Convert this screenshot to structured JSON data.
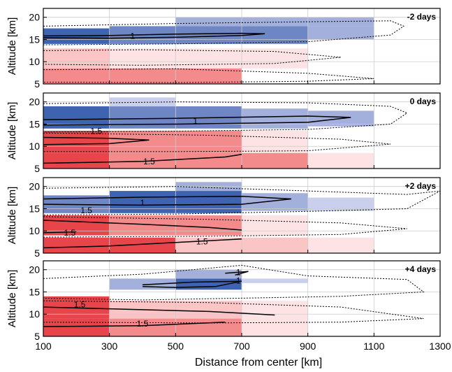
{
  "chart_data": {
    "type": "heatmap",
    "xlabel": "Distance from center [km]",
    "ylabel": "Altitude [km]",
    "xlim": [
      100,
      1300
    ],
    "ylim": [
      5,
      22
    ],
    "x_ticks": [
      "100",
      "300",
      "500",
      "700",
      "900",
      "1100",
      "1300"
    ],
    "y_ticks": [
      "5",
      "10",
      "15",
      "20"
    ],
    "grid": true,
    "colors": {
      "red_strong": "#e8454a",
      "red_mid": "#f38a8c",
      "red_light": "#fbc4c5",
      "red_pale": "#fde3e3",
      "blue_strong": "#3e63b0",
      "blue_mid": "#6f86c4",
      "blue_light": "#a4b0dc",
      "blue_pale": "#c9cfec"
    },
    "panels": [
      {
        "title": "-2 days",
        "contour_labels": [
          "1"
        ],
        "cells": [
          {
            "x0": 100,
            "x1": 700,
            "y0": 5,
            "y1": 8.5,
            "level": "red_mid"
          },
          {
            "x0": 100,
            "x1": 300,
            "y0": 8.5,
            "y1": 13,
            "level": "red_light"
          },
          {
            "x0": 300,
            "x1": 900,
            "y0": 8.5,
            "y1": 13,
            "level": "red_pale"
          },
          {
            "x0": 100,
            "x1": 300,
            "y0": 14,
            "y1": 17.5,
            "level": "blue_strong"
          },
          {
            "x0": 300,
            "x1": 900,
            "y0": 14,
            "y1": 18,
            "level": "blue_mid"
          },
          {
            "x0": 900,
            "x1": 1100,
            "y0": 15,
            "y1": 18,
            "level": "blue_light"
          },
          {
            "x0": 500,
            "x1": 1100,
            "y0": 18,
            "y1": 20,
            "level": "blue_light"
          }
        ]
      },
      {
        "title": "0 days",
        "contour_labels": [
          "1.5",
          "1.5",
          "1"
        ],
        "cells": [
          {
            "x0": 100,
            "x1": 300,
            "y0": 5,
            "y1": 8.5,
            "level": "red_strong"
          },
          {
            "x0": 300,
            "x1": 900,
            "y0": 5,
            "y1": 8.5,
            "level": "red_mid"
          },
          {
            "x0": 900,
            "x1": 1100,
            "y0": 5,
            "y1": 8.5,
            "level": "red_pale"
          },
          {
            "x0": 100,
            "x1": 300,
            "y0": 8.5,
            "y1": 13.5,
            "level": "red_strong"
          },
          {
            "x0": 300,
            "x1": 700,
            "y0": 8.5,
            "y1": 13.5,
            "level": "red_mid"
          },
          {
            "x0": 700,
            "x1": 900,
            "y0": 8.5,
            "y1": 13.5,
            "level": "red_pale"
          },
          {
            "x0": 100,
            "x1": 300,
            "y0": 14,
            "y1": 19,
            "level": "blue_strong"
          },
          {
            "x0": 300,
            "x1": 700,
            "y0": 14,
            "y1": 19,
            "level": "blue_mid"
          },
          {
            "x0": 700,
            "x1": 900,
            "y0": 14,
            "y1": 18.5,
            "level": "blue_light"
          },
          {
            "x0": 900,
            "x1": 1100,
            "y0": 14.5,
            "y1": 18,
            "level": "blue_light"
          },
          {
            "x0": 300,
            "x1": 500,
            "y0": 19,
            "y1": 21,
            "level": "blue_pale"
          }
        ]
      },
      {
        "title": "+2 days",
        "contour_labels": [
          "1.5",
          "1.5",
          "1.5",
          "1"
        ],
        "cells": [
          {
            "x0": 100,
            "x1": 500,
            "y0": 5,
            "y1": 8.5,
            "level": "red_strong"
          },
          {
            "x0": 500,
            "x1": 900,
            "y0": 5,
            "y1": 8.5,
            "level": "red_light"
          },
          {
            "x0": 900,
            "x1": 1100,
            "y0": 5,
            "y1": 8.5,
            "level": "red_pale"
          },
          {
            "x0": 100,
            "x1": 300,
            "y0": 9,
            "y1": 13.5,
            "level": "red_strong"
          },
          {
            "x0": 300,
            "x1": 700,
            "y0": 9,
            "y1": 13.5,
            "level": "red_mid"
          },
          {
            "x0": 700,
            "x1": 900,
            "y0": 9,
            "y1": 13.5,
            "level": "red_pale"
          },
          {
            "x0": 100,
            "x1": 300,
            "y0": 14,
            "y1": 18,
            "level": "blue_mid"
          },
          {
            "x0": 300,
            "x1": 700,
            "y0": 14,
            "y1": 19,
            "level": "blue_strong"
          },
          {
            "x0": 700,
            "x1": 900,
            "y0": 14.5,
            "y1": 18.5,
            "level": "blue_light"
          },
          {
            "x0": 900,
            "x1": 1100,
            "y0": 14.5,
            "y1": 17.5,
            "level": "blue_pale"
          },
          {
            "x0": 500,
            "x1": 700,
            "y0": 19,
            "y1": 21,
            "level": "blue_light"
          }
        ]
      },
      {
        "title": "+4 days",
        "contour_labels": [
          "1.5",
          "1.5",
          "1",
          "1"
        ],
        "cells": [
          {
            "x0": 100,
            "x1": 300,
            "y0": 5,
            "y1": 9,
            "level": "red_strong"
          },
          {
            "x0": 300,
            "x1": 700,
            "y0": 5,
            "y1": 9,
            "level": "red_mid"
          },
          {
            "x0": 700,
            "x1": 900,
            "y0": 5,
            "y1": 9,
            "level": "red_pale"
          },
          {
            "x0": 100,
            "x1": 300,
            "y0": 9,
            "y1": 14,
            "level": "red_strong"
          },
          {
            "x0": 300,
            "x1": 700,
            "y0": 9,
            "y1": 13,
            "level": "red_light"
          },
          {
            "x0": 700,
            "x1": 900,
            "y0": 9,
            "y1": 13,
            "level": "red_pale"
          },
          {
            "x0": 300,
            "x1": 500,
            "y0": 15.5,
            "y1": 18,
            "level": "blue_light"
          },
          {
            "x0": 500,
            "x1": 700,
            "y0": 15.5,
            "y1": 18,
            "level": "blue_strong"
          },
          {
            "x0": 500,
            "x1": 700,
            "y0": 18,
            "y1": 20,
            "level": "blue_light"
          },
          {
            "x0": 700,
            "x1": 900,
            "y0": 17,
            "y1": 18,
            "level": "blue_pale"
          }
        ]
      }
    ]
  }
}
